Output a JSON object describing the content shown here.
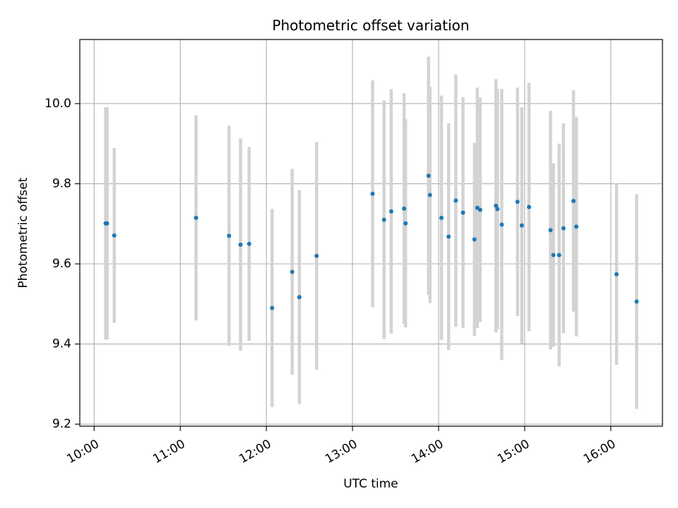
{
  "chart_data": {
    "type": "scatter",
    "title": "Photometric offset variation",
    "xlabel": "UTC time",
    "ylabel": "Photometric offset",
    "x_unit": "UTC time (HH:MM)",
    "xlim": [
      "09:50",
      "16:36"
    ],
    "ylim": [
      9.195,
      10.16
    ],
    "x_ticks": [
      "10:00",
      "11:00",
      "12:00",
      "13:00",
      "14:00",
      "15:00",
      "16:00"
    ],
    "y_ticks": [
      9.2,
      9.4,
      9.6,
      9.8,
      10.0
    ],
    "y_tick_labels": [
      "9.2",
      "9.4",
      "9.6",
      "9.8",
      "10.0"
    ],
    "grid": true,
    "colors": {
      "point": "#1f77b4",
      "errorbar": "#d3d3d3",
      "grid": "#b0b0b0",
      "axes": "#000000"
    },
    "points": [
      {
        "x": "10:08",
        "y": 9.701,
        "yerr": 0.29
      },
      {
        "x": "10:09",
        "y": 9.701,
        "yerr": 0.29
      },
      {
        "x": "10:14",
        "y": 9.671,
        "yerr": 0.218
      },
      {
        "x": "11:11",
        "y": 9.715,
        "yerr": 0.256
      },
      {
        "x": "11:34",
        "y": 9.67,
        "yerr": 0.275
      },
      {
        "x": "11:42",
        "y": 9.648,
        "yerr": 0.265
      },
      {
        "x": "11:48",
        "y": 9.65,
        "yerr": 0.242
      },
      {
        "x": "12:04",
        "y": 9.49,
        "yerr": 0.247
      },
      {
        "x": "12:18",
        "y": 9.58,
        "yerr": 0.257
      },
      {
        "x": "12:23",
        "y": 9.517,
        "yerr": 0.267
      },
      {
        "x": "12:35",
        "y": 9.62,
        "yerr": 0.284
      },
      {
        "x": "13:14",
        "y": 9.775,
        "yerr": 0.283
      },
      {
        "x": "13:22",
        "y": 9.71,
        "yerr": 0.298
      },
      {
        "x": "13:27",
        "y": 9.731,
        "yerr": 0.305
      },
      {
        "x": "13:36",
        "y": 9.738,
        "yerr": 0.288
      },
      {
        "x": "13:37",
        "y": 9.701,
        "yerr": 0.26
      },
      {
        "x": "13:53",
        "y": 9.82,
        "yerr": 0.297
      },
      {
        "x": "13:54",
        "y": 9.772,
        "yerr": 0.27
      },
      {
        "x": "14:02",
        "y": 9.715,
        "yerr": 0.305
      },
      {
        "x": "14:07",
        "y": 9.668,
        "yerr": 0.283
      },
      {
        "x": "14:12",
        "y": 9.758,
        "yerr": 0.315
      },
      {
        "x": "14:17",
        "y": 9.728,
        "yerr": 0.288
      },
      {
        "x": "14:25",
        "y": 9.661,
        "yerr": 0.241
      },
      {
        "x": "14:27",
        "y": 9.74,
        "yerr": 0.3
      },
      {
        "x": "14:29",
        "y": 9.735,
        "yerr": 0.28
      },
      {
        "x": "14:40",
        "y": 9.745,
        "yerr": 0.316
      },
      {
        "x": "14:41",
        "y": 9.737,
        "yerr": 0.3
      },
      {
        "x": "14:44",
        "y": 9.698,
        "yerr": 0.338
      },
      {
        "x": "14:55",
        "y": 9.755,
        "yerr": 0.285
      },
      {
        "x": "14:58",
        "y": 9.696,
        "yerr": 0.295
      },
      {
        "x": "15:03",
        "y": 9.742,
        "yerr": 0.31
      },
      {
        "x": "15:18",
        "y": 9.684,
        "yerr": 0.298
      },
      {
        "x": "15:20",
        "y": 9.622,
        "yerr": 0.229
      },
      {
        "x": "15:24",
        "y": 9.622,
        "yerr": 0.278
      },
      {
        "x": "15:27",
        "y": 9.689,
        "yerr": 0.262
      },
      {
        "x": "15:34",
        "y": 9.757,
        "yerr": 0.276
      },
      {
        "x": "15:36",
        "y": 9.693,
        "yerr": 0.274
      },
      {
        "x": "16:04",
        "y": 9.574,
        "yerr": 0.226
      },
      {
        "x": "16:18",
        "y": 9.506,
        "yerr": 0.268
      }
    ]
  }
}
